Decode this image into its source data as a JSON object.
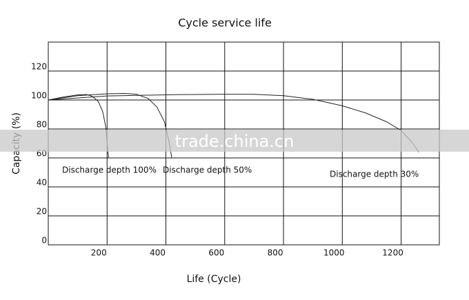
{
  "chart_data": {
    "type": "line",
    "title": "Cycle service  life",
    "x_label": "Life (Cycle)",
    "y_label": "Capacity    (%)",
    "xlim": [
      0,
      1330
    ],
    "xticks": [
      200,
      400,
      600,
      800,
      1000,
      1200
    ],
    "ylim": [
      0,
      140
    ],
    "yticks": [
      0,
      20,
      40,
      60,
      80,
      100,
      120
    ],
    "grid": true,
    "color": "#222222",
    "series": [
      {
        "name": "Discharge depth 100%",
        "x": [
          0,
          50,
          100,
          130,
          150,
          170,
          185,
          195,
          205
        ],
        "values": [
          100,
          102,
          103.5,
          103.8,
          102.5,
          99,
          92,
          82,
          60
        ]
      },
      {
        "name": "Discharge depth 50%",
        "x": [
          0,
          100,
          200,
          260,
          300,
          340,
          370,
          395,
          410,
          420
        ],
        "values": [
          100,
          103,
          104.3,
          104.5,
          104,
          101,
          95,
          85,
          72,
          60
        ]
      },
      {
        "name": "Discharge depth 30%",
        "x": [
          0,
          200,
          400,
          600,
          700,
          800,
          900,
          1000,
          1080,
          1150,
          1200,
          1240,
          1260
        ],
        "values": [
          100,
          102.8,
          103.6,
          104,
          103.9,
          103,
          100.5,
          96,
          91,
          85,
          79,
          70,
          64
        ]
      }
    ],
    "watermark": "trade.china.cn"
  }
}
